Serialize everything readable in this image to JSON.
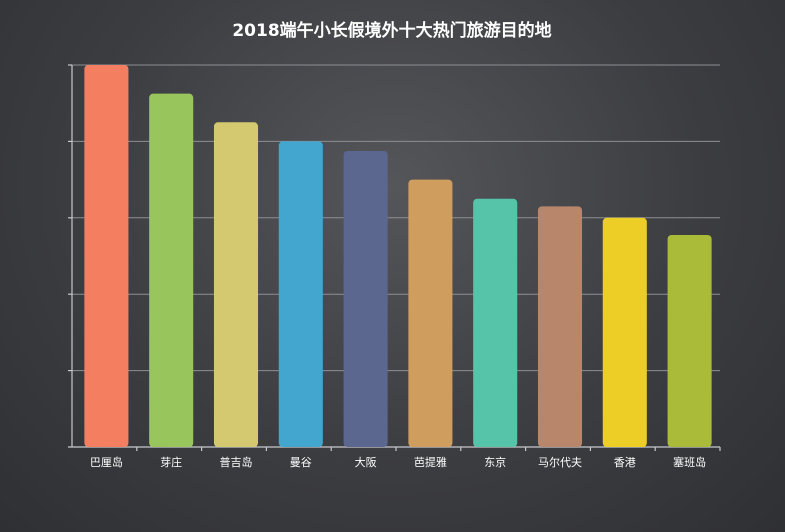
{
  "chart_data": {
    "type": "bar",
    "title": "2018端午小长假境外十大热门旅游目的地",
    "xlabel": "",
    "ylabel": "",
    "categories": [
      "巴厘岛",
      "芽庄",
      "普吉岛",
      "曼谷",
      "大阪",
      "芭提雅",
      "东京",
      "马尔代夫",
      "香港",
      "塞班岛"
    ],
    "values": [
      100,
      92.5,
      85,
      80,
      77.5,
      70,
      65,
      63,
      60,
      55.5
    ],
    "ylim": [
      0,
      100
    ],
    "grid": true,
    "y_ticks_shown": false,
    "colors": [
      "#f47e60",
      "#98c65c",
      "#d4c870",
      "#43a6cf",
      "#5b678f",
      "#cf9d5e",
      "#56c4a9",
      "#b8876b",
      "#ecce27",
      "#a9bb38"
    ]
  }
}
